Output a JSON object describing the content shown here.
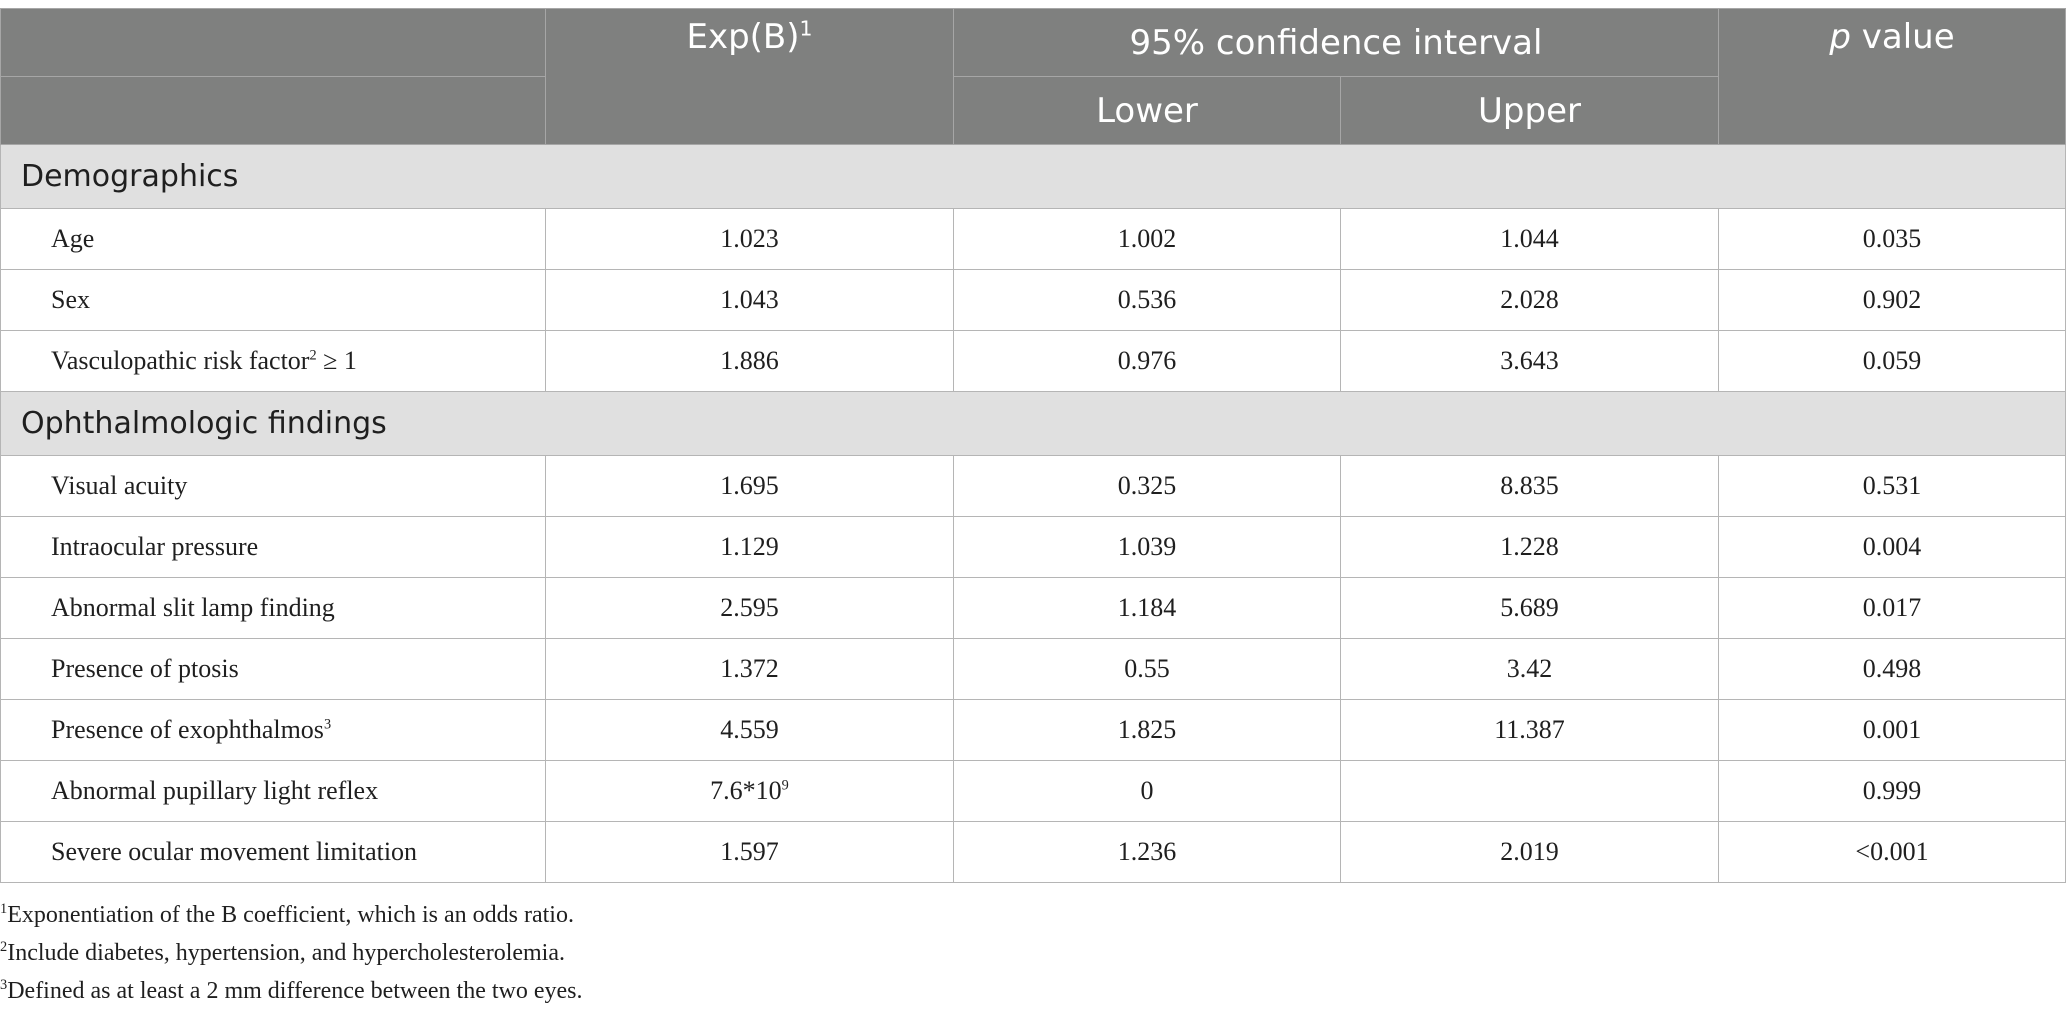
{
  "header": {
    "exp_b": "Exp(B)",
    "exp_b_sup": "1",
    "ci": "95% confidence interval",
    "lower": "Lower",
    "upper": "Upper",
    "p_italic": "p",
    "p_rest": " value"
  },
  "sections": [
    {
      "title": "Demographics",
      "rows": [
        {
          "label": "Age",
          "sup": "",
          "suffix": "",
          "exp": "1.023",
          "exp_sup": "",
          "lower": "1.002",
          "upper": "1.044",
          "p": "0.035"
        },
        {
          "label": "Sex",
          "sup": "",
          "suffix": "",
          "exp": "1.043",
          "exp_sup": "",
          "lower": "0.536",
          "upper": "2.028",
          "p": "0.902"
        },
        {
          "label": "Vasculopathic risk factor",
          "sup": "2",
          "suffix": " ≥ 1",
          "exp": "1.886",
          "exp_sup": "",
          "lower": "0.976",
          "upper": "3.643",
          "p": "0.059"
        }
      ]
    },
    {
      "title": "Ophthalmologic findings",
      "rows": [
        {
          "label": "Visual acuity",
          "sup": "",
          "suffix": "",
          "exp": "1.695",
          "exp_sup": "",
          "lower": "0.325",
          "upper": "8.835",
          "p": "0.531"
        },
        {
          "label": "Intraocular pressure",
          "sup": "",
          "suffix": "",
          "exp": "1.129",
          "exp_sup": "",
          "lower": "1.039",
          "upper": "1.228",
          "p": "0.004"
        },
        {
          "label": "Abnormal slit lamp finding",
          "sup": "",
          "suffix": "",
          "exp": "2.595",
          "exp_sup": "",
          "lower": "1.184",
          "upper": "5.689",
          "p": "0.017"
        },
        {
          "label": "Presence of ptosis",
          "sup": "",
          "suffix": "",
          "exp": "1.372",
          "exp_sup": "",
          "lower": "0.55",
          "upper": "3.42",
          "p": "0.498"
        },
        {
          "label": "Presence of exophthalmos",
          "sup": "3",
          "suffix": "",
          "exp": "4.559",
          "exp_sup": "",
          "lower": "1.825",
          "upper": "11.387",
          "p": "0.001"
        },
        {
          "label": "Abnormal pupillary light reflex",
          "sup": "",
          "suffix": "",
          "exp": "7.6*10",
          "exp_sup": "9",
          "lower": "0",
          "upper": "",
          "p": "0.999"
        },
        {
          "label": "Severe ocular movement limitation",
          "sup": "",
          "suffix": "",
          "exp": "1.597",
          "exp_sup": "",
          "lower": "1.236",
          "upper": "2.019",
          "p": "<0.001"
        }
      ]
    }
  ],
  "footnotes": [
    {
      "sup": "1",
      "text": "Exponentiation of the B coefficient, which is an odds ratio."
    },
    {
      "sup": "2",
      "text": "Include diabetes, hypertension, and hypercholesterolemia."
    },
    {
      "sup": "3",
      "text": "Defined as at least a 2 mm difference between the two eyes."
    }
  ]
}
